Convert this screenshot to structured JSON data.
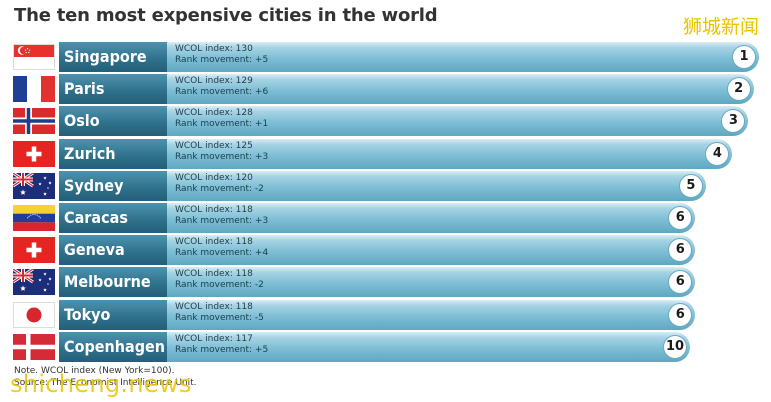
{
  "title": "The ten most expensive cities in the world",
  "watermark_cn": "狮城新闻",
  "watermark_en": "shicheng.news",
  "note": "Note. WCOL index (New York=100).",
  "source": "Source: The Economist Intelligence Unit.",
  "colors": {
    "bar_light": "#8ec6da",
    "name_block": "#2f6f89",
    "rank_border": "#6aa9bf"
  },
  "index_label": "WCOL index:",
  "movement_label": "Rank movement:",
  "chart_data": {
    "type": "bar",
    "title": "The ten most expensive cities in the world",
    "xlabel": "",
    "ylabel": "",
    "categories": [
      "Singapore",
      "Paris",
      "Oslo",
      "Zurich",
      "Sydney",
      "Caracas",
      "Geneva",
      "Melbourne",
      "Tokyo",
      "Copenhagen"
    ],
    "values": [
      130,
      129,
      128,
      125,
      120,
      118,
      118,
      118,
      118,
      117
    ],
    "rank_movement": [
      "+5",
      "+6",
      "+1",
      "+3",
      "-2",
      "+3",
      "+4",
      "-2",
      "-5",
      "+5"
    ],
    "ranks": [
      1,
      2,
      3,
      4,
      5,
      6,
      6,
      6,
      6,
      10
    ],
    "flags": [
      "singapore-flag",
      "france-flag",
      "norway-flag",
      "switzerland-flag",
      "australia-flag",
      "venezuela-flag",
      "switzerland-flag",
      "australia-flag",
      "japan-flag",
      "denmark-flag"
    ],
    "grid": false
  }
}
